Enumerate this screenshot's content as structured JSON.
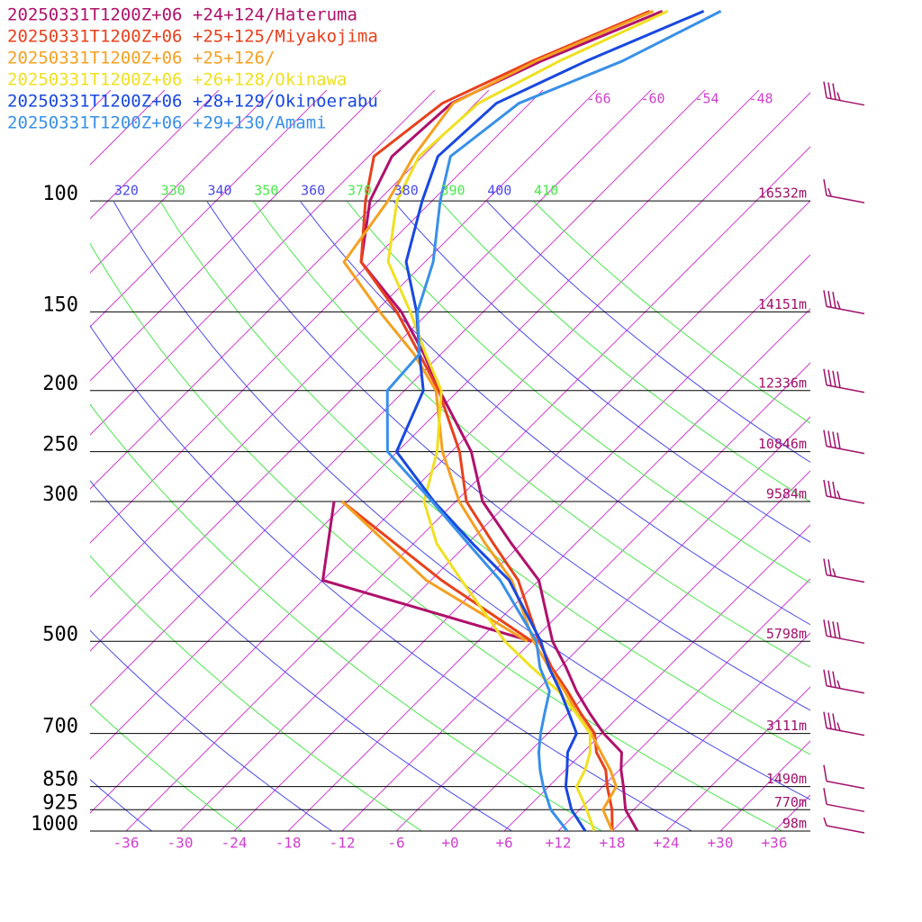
{
  "chart_data": {
    "type": "skewt",
    "ylim": [
      1000,
      48
    ],
    "xlim": [
      -40,
      40
    ],
    "yticks": [
      100,
      150,
      200,
      250,
      300,
      500,
      700,
      850,
      925,
      1000
    ],
    "height_labels": [
      "16532m",
      "14151m",
      "12336m",
      "10846m",
      "9584m",
      "5798m",
      "3111m",
      "1490m",
      "770m",
      "98m"
    ],
    "xticks": [
      -36,
      -30,
      -24,
      -18,
      -12,
      -6,
      {
        "value": 0,
        "label": "+0"
      },
      {
        "value": 6,
        "label": "+6"
      },
      {
        "value": 12,
        "label": "+12"
      },
      {
        "value": 18,
        "label": "+18"
      },
      {
        "value": 24,
        "label": "+24"
      },
      {
        "value": 30,
        "label": "+30"
      },
      {
        "value": 36,
        "label": "+36"
      }
    ],
    "isotherms": [
      -120,
      -114,
      -108,
      -102,
      -96,
      -90,
      -84,
      -78,
      -72,
      -66,
      -60,
      -54,
      -48,
      -42,
      -36,
      -30,
      -24,
      -18,
      -12,
      -6,
      0,
      6,
      12,
      18,
      24,
      30,
      36
    ],
    "upper_isotherm_labels": [
      -66,
      -60,
      -54,
      -48
    ],
    "isotherm_color": "#d040d0",
    "adiabats": [
      240,
      250,
      260,
      270,
      280,
      290,
      300,
      310
    ],
    "labeled_adiabats": [
      320,
      330,
      340,
      350,
      360,
      370,
      380,
      390,
      400,
      410
    ],
    "adiabat_colors": [
      "#4a4ae8",
      "#4ae84a"
    ],
    "series": [
      {
        "name": "20250331T1200Z+06 +24+124/Hateruma",
        "color": "#b0106b",
        "pressure": [
          1000,
          925,
          850,
          800,
          750,
          700,
          650,
          600,
          550,
          500,
          400,
          350,
          300,
          250,
          200,
          175,
          150,
          125,
          100,
          85,
          70,
          60,
          50,
          null,
          500,
          400,
          300
        ],
        "values": [
          20.8,
          17.1,
          14.3,
          12.2,
          10.3,
          6.2,
          2.4,
          -1.5,
          -5.3,
          -9.7,
          -18.0,
          -25.1,
          -33.0,
          -39.8,
          -50.1,
          -55.9,
          -63.1,
          -73.1,
          -78.9,
          -81.4,
          -80.7,
          -75.4,
          -67.5,
          null,
          -12.0,
          -42.0,
          -49.5
        ]
      },
      {
        "name": "20250331T1200Z+06 +25+125/Miyakojima",
        "color": "#e8401c",
        "pressure": [
          1000,
          925,
          850,
          800,
          750,
          700,
          650,
          600,
          550,
          500,
          400,
          350,
          300,
          250,
          200,
          175,
          150,
          125,
          100,
          85,
          70,
          60,
          50,
          null,
          500,
          400,
          300
        ],
        "values": [
          18.0,
          15.6,
          12.5,
          10.5,
          7.5,
          5.2,
          1.4,
          -2.5,
          -6.9,
          -11.2,
          -20.3,
          -27.1,
          -34.8,
          -41.1,
          -50.2,
          -56.4,
          -63.6,
          -73.1,
          -79.4,
          -83.4,
          -81.7,
          -76.4,
          -68.9,
          null,
          -12.0,
          -28.8,
          -48.6
        ]
      },
      {
        "name": "20250331T1200Z+06 +25+126/",
        "color": "#f5a020",
        "pressure": [
          1000,
          925,
          850,
          800,
          750,
          700,
          650,
          600,
          550,
          500,
          400,
          350,
          300,
          250,
          200,
          175,
          150,
          125,
          100,
          85,
          70,
          60,
          50,
          null,
          500,
          400,
          300
        ],
        "values": [
          18.0,
          14.6,
          13.5,
          11.0,
          8.0,
          4.8,
          1.0,
          -2.8,
          -7.2,
          -11.8,
          -21.0,
          -28.0,
          -35.6,
          -43.0,
          -50.5,
          -57.0,
          -65.5,
          -75.0,
          -76.9,
          -79.0,
          -80.5,
          -76.0,
          -68.5,
          null,
          -12.5,
          -30.5,
          -48.6
        ]
      },
      {
        "name": "20250331T1200Z+06 +26+128/Okinawa",
        "color": "#f0e020",
        "pressure": [
          1000,
          925,
          850,
          800,
          750,
          700,
          650,
          600,
          550,
          500,
          400,
          350,
          300,
          250,
          200,
          175,
          150,
          125,
          100,
          85,
          70,
          60,
          50
        ],
        "values": [
          16.0,
          12.8,
          9.1,
          8.2,
          6.8,
          4.7,
          0.9,
          -3.5,
          -9.1,
          -15.0,
          -26.6,
          -33.4,
          -39.5,
          -43.6,
          -49.9,
          -55.7,
          -62.1,
          -70.1,
          -75.9,
          -78.4,
          -77.7,
          -73.4,
          -66.9
        ]
      },
      {
        "name": "20250331T1200Z+06 +28+129/Okinoerabu",
        "color": "#1848e0",
        "pressure": [
          1000,
          925,
          850,
          800,
          750,
          700,
          650,
          600,
          550,
          500,
          400,
          350,
          300,
          250,
          200,
          175,
          150,
          125,
          100,
          85,
          70,
          60,
          50
        ],
        "values": [
          15.0,
          11.1,
          7.9,
          6.2,
          4.3,
          3.2,
          0.1,
          -3.3,
          -7.2,
          -11.0,
          -21.3,
          -29.4,
          -38.4,
          -48.1,
          -51.9,
          -56.4,
          -61.4,
          -68.1,
          -73.1,
          -76.3,
          -75.7,
          -70.4,
          -62.9
        ]
      },
      {
        "name": "20250331T1200Z+06 +29+130/Amami",
        "color": "#3890e8",
        "pressure": [
          1000,
          925,
          850,
          800,
          750,
          700,
          650,
          600,
          550,
          500,
          400,
          350,
          300,
          250,
          200,
          175,
          150,
          125,
          100,
          85,
          70,
          60,
          50
        ],
        "values": [
          13.0,
          8.8,
          5.4,
          3.2,
          1.1,
          -0.8,
          -2.6,
          -4.5,
          -8.2,
          -11.5,
          -22.3,
          -29.9,
          -38.6,
          -49.1,
          -55.9,
          -56.4,
          -61.3,
          -65.1,
          -71.1,
          -74.9,
          -73.2,
          -66.4,
          -61.0
        ]
      }
    ],
    "wind": {
      "color": "#a0106b",
      "pressure": [
        70,
        100,
        150,
        200,
        250,
        300,
        400,
        500,
        600,
        700,
        850,
        925,
        1000
      ],
      "speed": [
        35,
        15,
        35,
        40,
        40,
        35,
        25,
        40,
        35,
        35,
        10,
        10,
        5
      ]
    }
  }
}
